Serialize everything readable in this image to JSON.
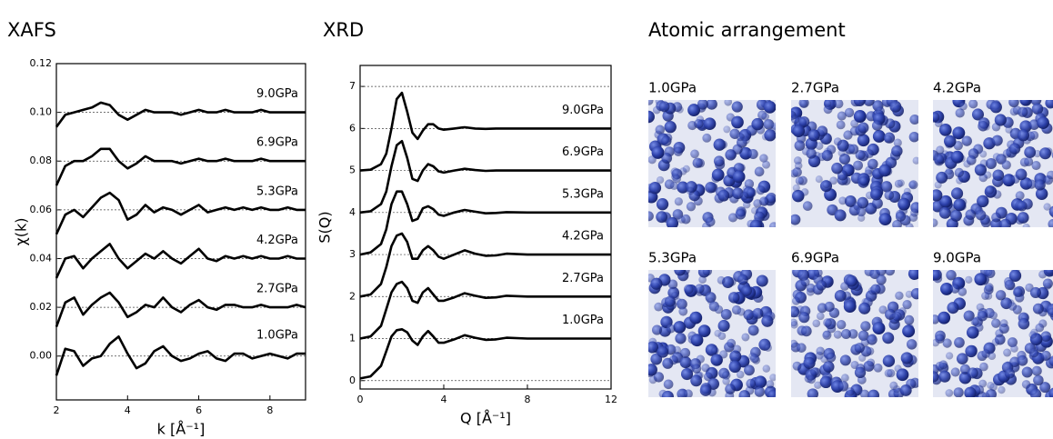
{
  "chart_data": [
    {
      "type": "line",
      "title": "XAFS",
      "xlabel": "k [Å⁻¹]",
      "ylabel": "χ(k)",
      "x": [
        2,
        2.25,
        2.5,
        2.75,
        3,
        3.25,
        3.5,
        3.75,
        4,
        4.25,
        4.5,
        4.75,
        5,
        5.25,
        5.5,
        5.75,
        6,
        6.25,
        6.5,
        6.75,
        7,
        7.25,
        7.5,
        7.75,
        8,
        8.25,
        8.5,
        8.75,
        9
      ],
      "xlim": [
        2,
        9
      ],
      "xticks": [
        2,
        4,
        6,
        8
      ],
      "ylim": [
        -0.018,
        0.12
      ],
      "yticks": [
        {
          "value": 0,
          "label": "0.00"
        },
        {
          "value": 0.02,
          "label": "0.02"
        },
        {
          "value": 0.04,
          "label": "0.04"
        },
        {
          "value": 0.06,
          "label": "0.06"
        },
        {
          "value": 0.08,
          "label": "0.08"
        },
        {
          "value": 0.1,
          "label": "0.10"
        },
        {
          "value": 0.12,
          "label": "0.12"
        }
      ],
      "grid": true,
      "series": [
        {
          "name": "1.0GPa",
          "color": "#000000",
          "values": [
            -0.008,
            0.003,
            0.002,
            -0.004,
            -0.001,
            0.0,
            0.005,
            0.008,
            0.001,
            -0.005,
            -0.003,
            0.002,
            0.004,
            0.0,
            -0.002,
            -0.001,
            0.001,
            0.002,
            -0.001,
            -0.002,
            0.001,
            0.001,
            -0.001,
            0.0,
            0.001,
            0.0,
            -0.001,
            0.001,
            0.001
          ]
        },
        {
          "name": "2.7GPa",
          "color": "#000000",
          "values": [
            0.012,
            0.022,
            0.024,
            0.017,
            0.021,
            0.024,
            0.026,
            0.022,
            0.016,
            0.018,
            0.021,
            0.02,
            0.024,
            0.02,
            0.018,
            0.021,
            0.023,
            0.02,
            0.019,
            0.021,
            0.021,
            0.02,
            0.02,
            0.021,
            0.02,
            0.02,
            0.02,
            0.021,
            0.02
          ]
        },
        {
          "name": "4.2GPa",
          "color": "#000000",
          "values": [
            0.032,
            0.04,
            0.041,
            0.036,
            0.04,
            0.043,
            0.046,
            0.04,
            0.036,
            0.039,
            0.042,
            0.04,
            0.043,
            0.04,
            0.038,
            0.041,
            0.044,
            0.04,
            0.039,
            0.041,
            0.04,
            0.041,
            0.04,
            0.041,
            0.04,
            0.04,
            0.041,
            0.04,
            0.04
          ]
        },
        {
          "name": "5.3GPa",
          "color": "#000000",
          "values": [
            0.05,
            0.058,
            0.06,
            0.057,
            0.061,
            0.065,
            0.067,
            0.064,
            0.056,
            0.058,
            0.062,
            0.059,
            0.061,
            0.06,
            0.058,
            0.06,
            0.062,
            0.059,
            0.06,
            0.061,
            0.06,
            0.061,
            0.06,
            0.061,
            0.06,
            0.06,
            0.061,
            0.06,
            0.06
          ]
        },
        {
          "name": "6.9GPa",
          "color": "#000000",
          "values": [
            0.07,
            0.078,
            0.08,
            0.08,
            0.082,
            0.085,
            0.085,
            0.08,
            0.077,
            0.079,
            0.082,
            0.08,
            0.08,
            0.08,
            0.079,
            0.08,
            0.081,
            0.08,
            0.08,
            0.081,
            0.08,
            0.08,
            0.08,
            0.081,
            0.08,
            0.08,
            0.08,
            0.08,
            0.08
          ]
        },
        {
          "name": "9.0GPa",
          "color": "#000000",
          "values": [
            0.094,
            0.099,
            0.1,
            0.101,
            0.102,
            0.104,
            0.103,
            0.099,
            0.097,
            0.099,
            0.101,
            0.1,
            0.1,
            0.1,
            0.099,
            0.1,
            0.101,
            0.1,
            0.1,
            0.101,
            0.1,
            0.1,
            0.1,
            0.101,
            0.1,
            0.1,
            0.1,
            0.1,
            0.1
          ]
        }
      ]
    },
    {
      "type": "line",
      "title": "XRD",
      "xlabel": "Q [Å⁻¹]",
      "ylabel": "S(Q)",
      "x": [
        0,
        0.5,
        1,
        1.25,
        1.5,
        1.75,
        2,
        2.25,
        2.5,
        2.75,
        3,
        3.25,
        3.5,
        3.75,
        4,
        4.5,
        5,
        5.5,
        6,
        6.5,
        7,
        8,
        9,
        10,
        11,
        12
      ],
      "xlim": [
        0,
        12
      ],
      "xticks": [
        0,
        4,
        8,
        12
      ],
      "ylim": [
        -0.2,
        7.5
      ],
      "yticks": [
        0,
        1,
        2,
        3,
        4,
        5,
        6,
        7
      ],
      "grid": true,
      "series": [
        {
          "name": "1.0GPa",
          "color": "#000000",
          "values": [
            0.05,
            0.1,
            0.35,
            0.7,
            1.05,
            1.2,
            1.22,
            1.15,
            0.95,
            0.85,
            1.05,
            1.18,
            1.05,
            0.9,
            0.9,
            0.98,
            1.08,
            1.02,
            0.97,
            0.98,
            1.02,
            1.0,
            1.0,
            1.0,
            1.0,
            1.0
          ]
        },
        {
          "name": "2.7GPa",
          "color": "#000000",
          "values": [
            1.0,
            1.05,
            1.3,
            1.7,
            2.1,
            2.3,
            2.35,
            2.2,
            1.9,
            1.85,
            2.1,
            2.2,
            2.05,
            1.9,
            1.9,
            1.98,
            2.08,
            2.02,
            1.97,
            1.98,
            2.02,
            2.0,
            2.0,
            2.0,
            2.0,
            2.0
          ]
        },
        {
          "name": "4.2GPa",
          "color": "#000000",
          "values": [
            2.0,
            2.05,
            2.3,
            2.7,
            3.2,
            3.45,
            3.5,
            3.3,
            2.9,
            2.9,
            3.1,
            3.2,
            3.1,
            2.95,
            2.9,
            3.0,
            3.1,
            3.02,
            2.97,
            2.98,
            3.02,
            3.0,
            3.0,
            3.0,
            3.0,
            3.0
          ]
        },
        {
          "name": "5.3GPa",
          "color": "#000000",
          "values": [
            3.0,
            3.05,
            3.25,
            3.6,
            4.2,
            4.5,
            4.5,
            4.2,
            3.8,
            3.85,
            4.1,
            4.15,
            4.08,
            3.95,
            3.92,
            4.0,
            4.06,
            4.02,
            3.98,
            3.99,
            4.01,
            4.0,
            4.0,
            4.0,
            4.0,
            4.0
          ]
        },
        {
          "name": "6.9GPa",
          "color": "#000000",
          "values": [
            4.0,
            4.03,
            4.2,
            4.5,
            5.1,
            5.6,
            5.7,
            5.3,
            4.8,
            4.75,
            5.0,
            5.15,
            5.1,
            4.98,
            4.95,
            5.0,
            5.04,
            5.01,
            4.99,
            5.0,
            5.0,
            5.0,
            5.0,
            5.0,
            5.0,
            5.0
          ]
        },
        {
          "name": "9.0GPa",
          "color": "#000000",
          "values": [
            5.0,
            5.02,
            5.15,
            5.4,
            6.0,
            6.7,
            6.85,
            6.4,
            5.9,
            5.75,
            5.95,
            6.1,
            6.1,
            6.0,
            5.97,
            6.0,
            6.03,
            6.0,
            5.99,
            6.0,
            6.0,
            6.0,
            6.0,
            6.0,
            6.0,
            6.0
          ]
        }
      ]
    }
  ],
  "atomic_arrangement": {
    "title": "Atomic arrangement",
    "labels": [
      "1.0GPa",
      "2.7GPa",
      "4.2GPa",
      "5.3GPa",
      "6.9GPa",
      "9.0GPa"
    ]
  }
}
